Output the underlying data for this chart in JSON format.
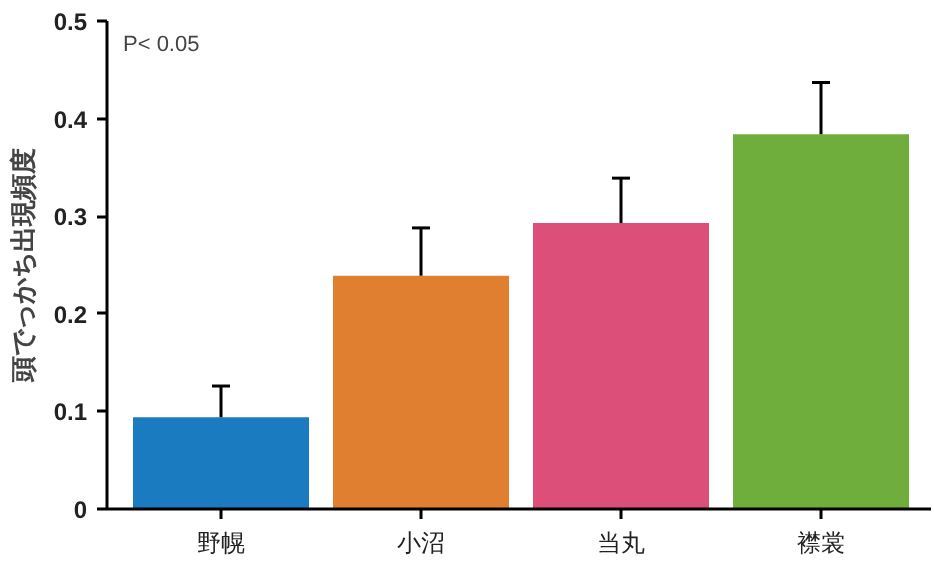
{
  "chart_data": {
    "type": "bar",
    "ylabel": "頭でっかち出現頻度",
    "categories": [
      "野幌",
      "小沼",
      "当丸",
      "襟裳"
    ],
    "values": [
      0.094,
      0.239,
      0.293,
      0.384
    ],
    "errors": [
      0.032,
      0.049,
      0.046,
      0.053
    ],
    "colors": [
      "#1b7bc0",
      "#e07f30",
      "#dc4f79",
      "#6fae3d"
    ],
    "ylim": [
      0,
      0.5
    ],
    "yticks": [
      0,
      0.1,
      0.2,
      0.3,
      0.4,
      0.5
    ],
    "grid": false,
    "annotations": [
      "P< 0.05"
    ]
  }
}
